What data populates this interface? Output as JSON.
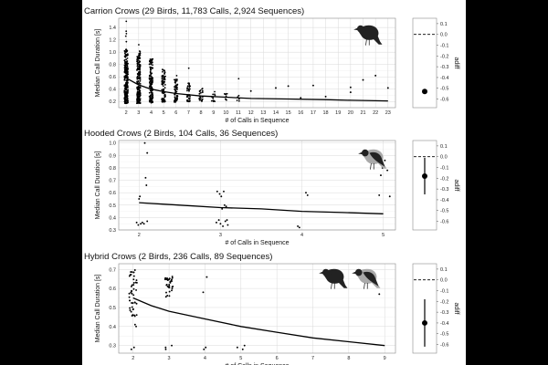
{
  "chart_data": [
    {
      "type": "scatter",
      "title": "Carrion Crows (29 Birds, 11,783 Calls, 2,924 Sequences)",
      "xlabel": "# of Calls in Sequence",
      "ylabel": "Median Call Duration [s]",
      "xlim": [
        1.4,
        23.6
      ],
      "ylim": [
        0.1,
        1.55
      ],
      "x_ticks": [
        2,
        3,
        4,
        5,
        6,
        7,
        8,
        9,
        10,
        11,
        12,
        13,
        14,
        15,
        16,
        17,
        18,
        19,
        20,
        21,
        22,
        23
      ],
      "y_ticks": [
        0.2,
        0.4,
        0.6,
        0.8,
        1.0,
        1.2,
        1.4
      ],
      "y_tick_labels": [
        "0.2",
        "0.4",
        "0.6",
        "0.8",
        "1.0",
        "1.2",
        "1.4"
      ],
      "columns": [
        {
          "x": 2,
          "n": 260,
          "lo": 0.17,
          "hi": 1.05,
          "outliers": [
            1.17,
            1.26,
            1.3,
            1.34,
            1.5
          ]
        },
        {
          "x": 3,
          "n": 200,
          "lo": 0.17,
          "hi": 1.02,
          "outliers": [
            1.12
          ]
        },
        {
          "x": 4,
          "n": 150,
          "lo": 0.18,
          "hi": 0.92,
          "outliers": []
        },
        {
          "x": 5,
          "n": 90,
          "lo": 0.19,
          "hi": 0.72,
          "outliers": []
        },
        {
          "x": 6,
          "n": 60,
          "lo": 0.19,
          "hi": 0.56,
          "outliers": [
            0.62
          ]
        },
        {
          "x": 7,
          "n": 40,
          "lo": 0.2,
          "hi": 0.5,
          "outliers": [
            0.74
          ]
        },
        {
          "x": 8,
          "n": 25,
          "lo": 0.2,
          "hi": 0.42,
          "outliers": []
        },
        {
          "x": 9,
          "n": 12,
          "lo": 0.2,
          "hi": 0.38,
          "outliers": []
        },
        {
          "x": 10,
          "n": 8,
          "lo": 0.21,
          "hi": 0.33,
          "outliers": []
        },
        {
          "x": 11,
          "n": 5,
          "lo": 0.2,
          "hi": 0.3,
          "outliers": [
            0.57
          ]
        }
      ],
      "sparse_points": [
        {
          "x": 12,
          "y": 0.37
        },
        {
          "x": 14,
          "y": 0.42
        },
        {
          "x": 15,
          "y": 0.45
        },
        {
          "x": 16,
          "y": 0.26
        },
        {
          "x": 17,
          "y": 0.46
        },
        {
          "x": 18,
          "y": 0.28
        },
        {
          "x": 20,
          "y": 0.43
        },
        {
          "x": 20,
          "y": 0.35
        },
        {
          "x": 21,
          "y": 0.55
        },
        {
          "x": 22,
          "y": 0.62
        },
        {
          "x": 23,
          "y": 0.42
        }
      ],
      "fit_curve": [
        {
          "x": 2,
          "y": 0.58
        },
        {
          "x": 3,
          "y": 0.47
        },
        {
          "x": 4,
          "y": 0.4
        },
        {
          "x": 5,
          "y": 0.36
        },
        {
          "x": 6,
          "y": 0.33
        },
        {
          "x": 8,
          "y": 0.29
        },
        {
          "x": 10,
          "y": 0.27
        },
        {
          "x": 12,
          "y": 0.25
        },
        {
          "x": 15,
          "y": 0.24
        },
        {
          "x": 18,
          "y": 0.23
        },
        {
          "x": 20,
          "y": 0.22
        },
        {
          "x": 23,
          "y": 0.21
        }
      ],
      "adiff": {
        "label": "adiff",
        "estimate": -0.53,
        "ci": [
          -0.55,
          -0.51
        ],
        "ylim": [
          -0.68,
          0.15
        ],
        "ticks": [
          0.1,
          0.0,
          -0.1,
          -0.2,
          -0.3,
          -0.4,
          -0.5,
          -0.6
        ],
        "tick_labels": [
          "0.1",
          "0.0",
          "-0.1",
          "-0.2",
          "-0.3",
          "-0.4",
          "-0.5",
          "-0.6"
        ]
      },
      "icon": "carrion-crow-icon",
      "grid": true
    },
    {
      "type": "scatter",
      "title": "Hooded Crows (2 Birds, 104 Calls, 36 Sequences)",
      "xlabel": "# of Calls in Sequence",
      "ylabel": "Median Call Duration [s]",
      "xlim": [
        1.75,
        5.15
      ],
      "ylim": [
        0.3,
        1.02
      ],
      "x_ticks": [
        2,
        3,
        4,
        5
      ],
      "y_ticks": [
        0.3,
        0.4,
        0.5,
        0.6,
        0.7,
        0.8,
        0.9,
        1.0
      ],
      "y_tick_labels": [
        "0.3",
        "0.4",
        "0.5",
        "0.6",
        "0.7",
        "0.8",
        "0.9",
        "1.0"
      ],
      "points": [
        {
          "x": 1.97,
          "y": 0.36
        },
        {
          "x": 1.99,
          "y": 0.34
        },
        {
          "x": 2.0,
          "y": 0.55
        },
        {
          "x": 2.01,
          "y": 0.57
        },
        {
          "x": 2.02,
          "y": 0.35
        },
        {
          "x": 2.04,
          "y": 0.36
        },
        {
          "x": 2.06,
          "y": 0.35
        },
        {
          "x": 2.07,
          "y": 1.0
        },
        {
          "x": 2.08,
          "y": 0.72
        },
        {
          "x": 2.09,
          "y": 0.66
        },
        {
          "x": 2.1,
          "y": 0.37
        },
        {
          "x": 2.1,
          "y": 0.92
        },
        {
          "x": 2.95,
          "y": 0.36
        },
        {
          "x": 2.96,
          "y": 0.61
        },
        {
          "x": 2.98,
          "y": 0.38
        },
        {
          "x": 2.99,
          "y": 0.59
        },
        {
          "x": 3.0,
          "y": 0.35
        },
        {
          "x": 3.01,
          "y": 0.57
        },
        {
          "x": 3.02,
          "y": 0.47
        },
        {
          "x": 3.03,
          "y": 0.33
        },
        {
          "x": 3.04,
          "y": 0.61
        },
        {
          "x": 3.05,
          "y": 0.5
        },
        {
          "x": 3.06,
          "y": 0.37
        },
        {
          "x": 3.07,
          "y": 0.49
        },
        {
          "x": 3.08,
          "y": 0.38
        },
        {
          "x": 3.09,
          "y": 0.34
        },
        {
          "x": 3.95,
          "y": 0.33
        },
        {
          "x": 3.97,
          "y": 0.32
        },
        {
          "x": 4.05,
          "y": 0.6
        },
        {
          "x": 4.07,
          "y": 0.58
        },
        {
          "x": 4.95,
          "y": 0.58
        },
        {
          "x": 4.97,
          "y": 0.74
        },
        {
          "x": 4.99,
          "y": 0.8
        },
        {
          "x": 5.02,
          "y": 0.86
        },
        {
          "x": 5.05,
          "y": 0.78
        },
        {
          "x": 5.08,
          "y": 0.57
        }
      ],
      "fit_curve": [
        {
          "x": 2,
          "y": 0.52
        },
        {
          "x": 2.5,
          "y": 0.5
        },
        {
          "x": 3,
          "y": 0.48
        },
        {
          "x": 3.5,
          "y": 0.47
        },
        {
          "x": 4,
          "y": 0.45
        },
        {
          "x": 4.5,
          "y": 0.44
        },
        {
          "x": 5,
          "y": 0.43
        }
      ],
      "adiff": {
        "label": "adiff",
        "estimate": -0.18,
        "ci": [
          -0.01,
          -0.35
        ],
        "ylim": [
          -0.68,
          0.15
        ],
        "ticks": [
          0.1,
          0.0,
          -0.1,
          -0.2,
          -0.3,
          -0.4,
          -0.5,
          -0.6
        ],
        "tick_labels": [
          "0.1",
          "0.0",
          "-0.1",
          "-0.2",
          "-0.3",
          "-0.4",
          "-0.5",
          "-0.6"
        ]
      },
      "icon": "hooded-crow-icon",
      "grid": true
    },
    {
      "type": "scatter",
      "title": "Hybrid Crows (2 Birds, 236 Calls, 89 Sequences)",
      "xlabel": "# of Calls in Sequence",
      "ylabel": "Median Call Duration [s]",
      "xlim": [
        1.6,
        9.3
      ],
      "ylim": [
        0.26,
        0.73
      ],
      "x_ticks": [
        2,
        3,
        4,
        5,
        6,
        7,
        8,
        9
      ],
      "y_ticks": [
        0.3,
        0.4,
        0.5,
        0.6,
        0.7
      ],
      "y_tick_labels": [
        "0.3",
        "0.4",
        "0.5",
        "0.6",
        "0.7"
      ],
      "clusters": [
        {
          "x": 2,
          "n": 45,
          "lo": 0.45,
          "hi": 0.7,
          "extra": [
            0.41,
            0.29,
            0.28,
            0.4
          ]
        },
        {
          "x": 3,
          "n": 35,
          "lo": 0.55,
          "hi": 0.67,
          "extra": [
            0.28,
            0.29,
            0.3
          ]
        }
      ],
      "points": [
        {
          "x": 3.95,
          "y": 0.58
        },
        {
          "x": 4.05,
          "y": 0.66
        },
        {
          "x": 4.02,
          "y": 0.29
        },
        {
          "x": 3.97,
          "y": 0.28
        },
        {
          "x": 4.9,
          "y": 0.29
        },
        {
          "x": 5.05,
          "y": 0.28
        },
        {
          "x": 5.1,
          "y": 0.3
        },
        {
          "x": 8.85,
          "y": 0.57
        }
      ],
      "fit_curve": [
        {
          "x": 2,
          "y": 0.55
        },
        {
          "x": 2.5,
          "y": 0.51
        },
        {
          "x": 3,
          "y": 0.48
        },
        {
          "x": 4,
          "y": 0.44
        },
        {
          "x": 5,
          "y": 0.4
        },
        {
          "x": 6,
          "y": 0.37
        },
        {
          "x": 7,
          "y": 0.34
        },
        {
          "x": 8,
          "y": 0.32
        },
        {
          "x": 9,
          "y": 0.3
        }
      ],
      "adiff": {
        "label": "adiff",
        "estimate": -0.4,
        "ci": [
          -0.18,
          -0.62
        ],
        "ylim": [
          -0.68,
          0.15
        ],
        "ticks": [
          0.1,
          0.0,
          -0.1,
          -0.2,
          -0.3,
          -0.4,
          -0.5,
          -0.6
        ],
        "tick_labels": [
          "0.1",
          "0.0",
          "-0.1",
          "-0.2",
          "-0.3",
          "-0.4",
          "-0.5",
          "-0.6"
        ]
      },
      "icon": "hybrid-crows-icon",
      "grid": true
    }
  ]
}
